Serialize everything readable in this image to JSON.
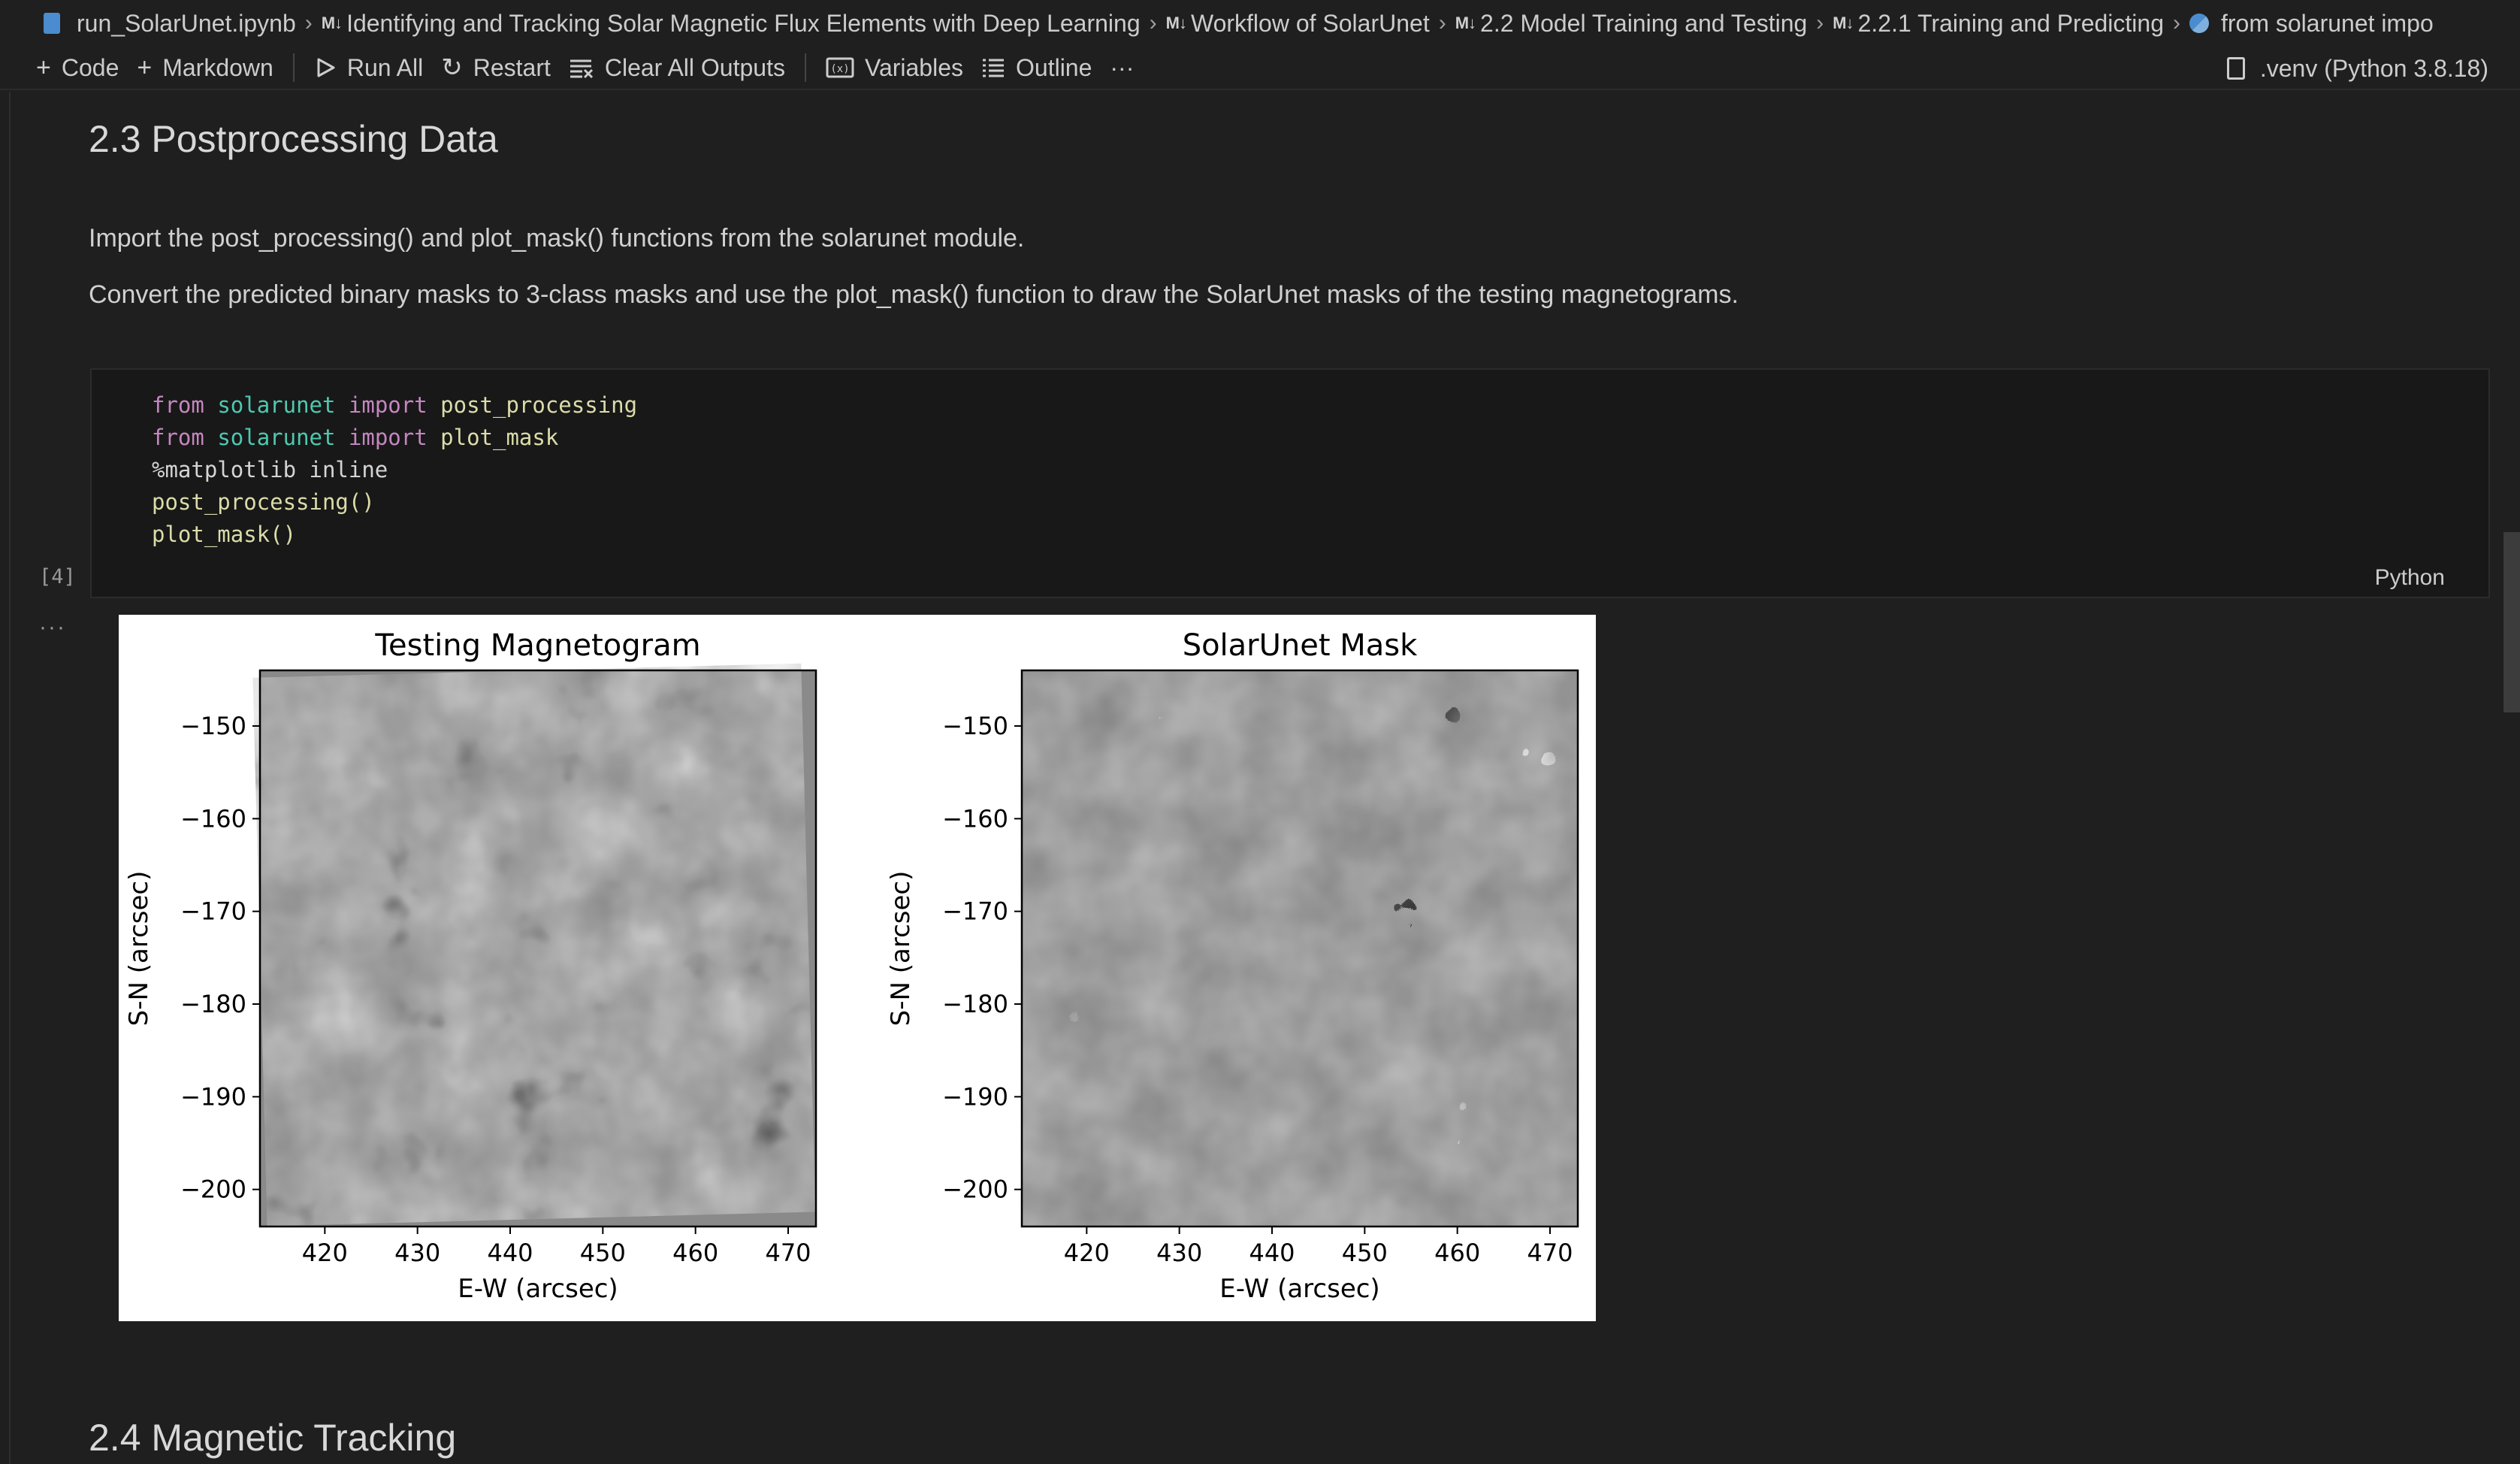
{
  "breadcrumb": {
    "items": [
      {
        "label": "run_SolarUnet.ipynb",
        "icon": "notebook-file-icon"
      },
      {
        "label": "Identifying and Tracking Solar Magnetic Flux Elements with Deep Learning",
        "icon": "markdown-icon"
      },
      {
        "label": "Workflow of SolarUnet",
        "icon": "markdown-icon"
      },
      {
        "label": "2.2 Model Training and Testing",
        "icon": "markdown-icon"
      },
      {
        "label": "2.2.1 Training and Predicting",
        "icon": "markdown-icon"
      },
      {
        "label": "from solarunet impo",
        "icon": "python-icon"
      }
    ],
    "md_glyph": "M↓"
  },
  "toolbar": {
    "code_label": "Code",
    "markdown_label": "Markdown",
    "run_all_label": "Run All",
    "restart_label": "Restart",
    "clear_outputs_label": "Clear All Outputs",
    "variables_label": "Variables",
    "outline_label": "Outline",
    "more_label": "···",
    "kernel_label": ".venv (Python 3.8.18)"
  },
  "section_postprocessing": {
    "heading": "2.3 Postprocessing Data",
    "para1": "Import the post_processing() and plot_mask() functions from the solarunet module.",
    "para2": "Convert the predicted binary masks to 3-class masks and use the plot_mask() function to draw the SolarUnet masks of the testing magnetograms."
  },
  "code_cell": {
    "execution_count": "[4]",
    "language": "Python",
    "output_marker": "···",
    "lines": [
      [
        {
          "t": "from",
          "c": "kw"
        },
        {
          "t": " ",
          "c": "plain"
        },
        {
          "t": "solarunet",
          "c": "mod"
        },
        {
          "t": " ",
          "c": "plain"
        },
        {
          "t": "import",
          "c": "kw"
        },
        {
          "t": " ",
          "c": "plain"
        },
        {
          "t": "post_processing",
          "c": "fn"
        }
      ],
      [
        {
          "t": "from",
          "c": "kw"
        },
        {
          "t": " ",
          "c": "plain"
        },
        {
          "t": "solarunet",
          "c": "mod"
        },
        {
          "t": " ",
          "c": "plain"
        },
        {
          "t": "import",
          "c": "kw"
        },
        {
          "t": " ",
          "c": "plain"
        },
        {
          "t": "plot_mask",
          "c": "fn"
        }
      ],
      [
        {
          "t": "%matplotlib inline",
          "c": "plain"
        }
      ],
      [
        {
          "t": "post_processing()",
          "c": "fn"
        }
      ],
      [
        {
          "t": "plot_mask()",
          "c": "fn"
        }
      ]
    ]
  },
  "chart_data": [
    {
      "type": "heatmap",
      "title": "Testing Magnetogram",
      "xlabel": "E-W (arcsec)",
      "ylabel": "S-N (arcsec)",
      "x_ticks": [
        420,
        430,
        440,
        450,
        460,
        470
      ],
      "y_ticks": [
        -150,
        -160,
        -170,
        -180,
        -190,
        -200
      ],
      "xlim": [
        413,
        473
      ],
      "ylim": [
        -204,
        -144
      ],
      "colormap": "gray"
    },
    {
      "type": "heatmap",
      "title": "SolarUnet Mask",
      "xlabel": "E-W (arcsec)",
      "ylabel": "S-N (arcsec)",
      "x_ticks": [
        420,
        430,
        440,
        450,
        460,
        470
      ],
      "y_ticks": [
        -150,
        -160,
        -170,
        -180,
        -190,
        -200
      ],
      "xlim": [
        413,
        473
      ],
      "ylim": [
        -204,
        -144
      ],
      "classes": [
        "negative",
        "background",
        "positive"
      ],
      "class_colors": [
        "#000000",
        "#808080",
        "#ffffff"
      ]
    }
  ],
  "section_tracking": {
    "heading": "2.4 Magnetic Tracking"
  }
}
